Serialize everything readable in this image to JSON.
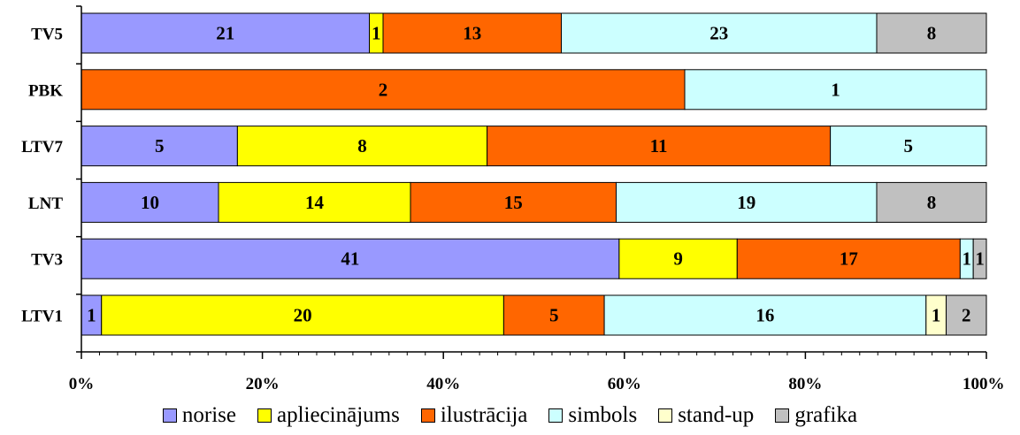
{
  "chart_data": {
    "type": "bar",
    "orientation": "horizontal",
    "stacked": "percent",
    "categories": [
      "TV5",
      "PBK",
      "LTV7",
      "LNT",
      "TV3",
      "LTV1"
    ],
    "series": [
      {
        "name": "norise",
        "color": "#9999ff",
        "values": [
          21,
          0,
          5,
          10,
          41,
          1
        ]
      },
      {
        "name": "apliecinājums",
        "color": "#ffff00",
        "values": [
          1,
          0,
          8,
          14,
          9,
          20
        ]
      },
      {
        "name": "ilustrācija",
        "color": "#ff6600",
        "values": [
          13,
          2,
          11,
          15,
          17,
          5
        ]
      },
      {
        "name": "simbols",
        "color": "#ccffff",
        "values": [
          23,
          1,
          5,
          19,
          1,
          16
        ]
      },
      {
        "name": "stand-up",
        "color": "#ffffcc",
        "values": [
          0,
          0,
          0,
          0,
          0,
          1
        ]
      },
      {
        "name": "grafika",
        "color": "#c0c0c0",
        "values": [
          8,
          0,
          0,
          8,
          1,
          2
        ]
      }
    ],
    "x_ticks": [
      "0%",
      "20%",
      "40%",
      "60%",
      "80%",
      "100%"
    ],
    "xlim": [
      0,
      100
    ],
    "legend_position": "bottom",
    "grid": false
  }
}
